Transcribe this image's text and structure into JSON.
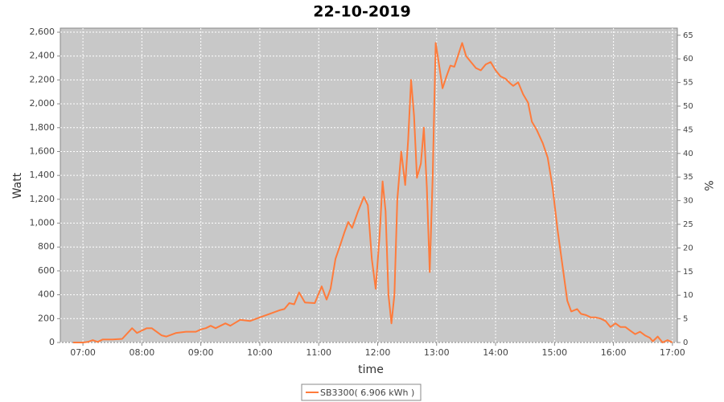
{
  "chart_data": {
    "type": "line",
    "title": "22-10-2019",
    "xlabel": "time",
    "ylabel": "Watt",
    "y2label": "%",
    "xlim": [
      397,
      1025
    ],
    "xticks": [
      {
        "value": 420,
        "label": "07:00"
      },
      {
        "value": 480,
        "label": "08:00"
      },
      {
        "value": 540,
        "label": "09:00"
      },
      {
        "value": 600,
        "label": "10:00"
      },
      {
        "value": 660,
        "label": "11:00"
      },
      {
        "value": 720,
        "label": "12:00"
      },
      {
        "value": 780,
        "label": "13:00"
      },
      {
        "value": 840,
        "label": "14:00"
      },
      {
        "value": 900,
        "label": "15:00"
      },
      {
        "value": 960,
        "label": "16:00"
      },
      {
        "value": 1020,
        "label": "17:00"
      }
    ],
    "ylim": [
      0,
      2634
    ],
    "yticks": [
      0,
      200,
      400,
      600,
      800,
      {
        "value": 1000,
        "label": "1,000"
      },
      {
        "value": 1200,
        "label": "1,200"
      },
      {
        "value": 1400,
        "label": "1,400"
      },
      {
        "value": 1600,
        "label": "1,600"
      },
      {
        "value": 1800,
        "label": "1,800"
      },
      {
        "value": 2000,
        "label": "2,000"
      },
      {
        "value": 2200,
        "label": "2,200"
      },
      {
        "value": 2400,
        "label": "2,400"
      },
      {
        "value": 2600,
        "label": "2,600"
      }
    ],
    "y2lim": [
      0,
      66.5
    ],
    "y2ticks": [
      0,
      5,
      10,
      15,
      20,
      25,
      30,
      35,
      40,
      45,
      50,
      55,
      60,
      65
    ],
    "grid": true,
    "series": [
      {
        "name": "SB3300( 6.906 kWh )",
        "color": "#ff7b3b",
        "x": [
          410,
          420,
          425,
          430,
          435,
          440,
          450,
          460,
          470,
          475,
          485,
          490,
          500,
          505,
          515,
          525,
          535,
          540,
          545,
          550,
          555,
          565,
          570,
          580,
          590,
          600,
          610,
          620,
          625,
          630,
          635,
          640,
          646,
          656,
          663,
          668,
          672,
          677,
          682,
          686,
          690,
          694,
          700,
          706,
          710,
          714,
          718,
          722,
          725,
          728,
          731,
          734,
          737,
          740,
          744,
          748,
          751,
          754,
          757,
          760,
          764,
          767,
          770,
          773,
          776,
          779,
          783,
          786,
          790,
          794,
          798,
          806,
          810,
          815,
          820,
          825,
          830,
          835,
          840,
          845,
          850,
          855,
          858,
          863,
          868,
          873,
          877,
          882,
          888,
          893,
          898,
          903,
          908,
          913,
          917,
          923,
          927,
          932,
          937,
          942,
          947,
          952,
          957,
          962,
          967,
          972,
          977,
          982,
          987,
          992,
          997,
          1000,
          1005,
          1010,
          1015,
          1020
        ],
        "values": [
          0,
          0,
          5,
          20,
          5,
          25,
          25,
          30,
          120,
          80,
          120,
          120,
          60,
          50,
          80,
          90,
          90,
          110,
          120,
          140,
          120,
          160,
          140,
          190,
          180,
          210,
          240,
          270,
          280,
          330,
          320,
          420,
          335,
          330,
          470,
          360,
          450,
          700,
          820,
          920,
          1010,
          960,
          1100,
          1220,
          1150,
          700,
          450,
          900,
          1350,
          1100,
          400,
          160,
          400,
          1200,
          1600,
          1320,
          1700,
          2200,
          1900,
          1380,
          1500,
          1800,
          1300,
          590,
          1400,
          2510,
          2300,
          2130,
          2230,
          2320,
          2310,
          2510,
          2400,
          2350,
          2300,
          2280,
          2330,
          2350,
          2280,
          2230,
          2210,
          2170,
          2150,
          2180,
          2080,
          2010,
          1850,
          1780,
          1670,
          1550,
          1300,
          950,
          650,
          350,
          260,
          280,
          240,
          230,
          210,
          210,
          200,
          180,
          130,
          160,
          130,
          130,
          100,
          70,
          90,
          60,
          40,
          10,
          50,
          0,
          20,
          0
        ]
      }
    ]
  }
}
